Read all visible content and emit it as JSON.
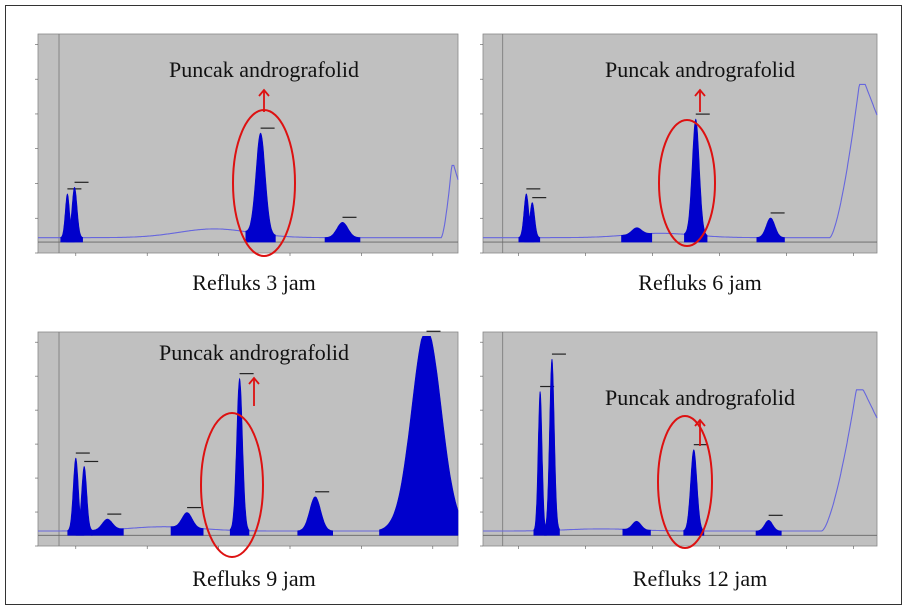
{
  "figure": {
    "peak_label": "Puncak andrografolid",
    "colors": {
      "fill": "#0000cc",
      "line": "#6666dd",
      "bg": "#c0c0c0",
      "baseline": "#666666",
      "marker": "#dd1111"
    }
  },
  "chart_data": [
    {
      "type": "area",
      "caption": "Refluks 3 jam",
      "annotation": "Puncak andrografolid",
      "peaks": [
        {
          "center": 0.07,
          "height": 0.2,
          "width": 0.005
        },
        {
          "center": 0.087,
          "height": 0.23,
          "width": 0.006
        },
        {
          "center": 0.53,
          "height": 0.46,
          "width": 0.011
        },
        {
          "center": 0.725,
          "height": 0.07,
          "width": 0.013
        }
      ],
      "end_rise": {
        "start": 0.96,
        "height": 0.33
      },
      "hump": {
        "center": 0.42,
        "height": 0.04
      }
    },
    {
      "type": "area",
      "caption": "Refluks 6 jam",
      "annotation": "Puncak andrografolid",
      "peaks": [
        {
          "center": 0.11,
          "height": 0.2,
          "width": 0.006
        },
        {
          "center": 0.125,
          "height": 0.16,
          "width": 0.006
        },
        {
          "center": 0.39,
          "height": 0.03,
          "width": 0.012
        },
        {
          "center": 0.54,
          "height": 0.53,
          "width": 0.009
        },
        {
          "center": 0.73,
          "height": 0.09,
          "width": 0.011
        }
      ],
      "end_rise": {
        "start": 0.88,
        "height": 0.7
      },
      "hump": {
        "center": 0.45,
        "height": 0.02
      }
    },
    {
      "type": "area",
      "caption": "Refluks 9 jam",
      "annotation": "Puncak andrografolid",
      "peaks": [
        {
          "center": 0.09,
          "height": 0.34,
          "width": 0.006
        },
        {
          "center": 0.11,
          "height": 0.3,
          "width": 0.006
        },
        {
          "center": 0.165,
          "height": 0.05,
          "width": 0.012
        },
        {
          "center": 0.355,
          "height": 0.07,
          "width": 0.012
        },
        {
          "center": 0.48,
          "height": 0.71,
          "width": 0.007
        },
        {
          "center": 0.66,
          "height": 0.16,
          "width": 0.013
        },
        {
          "center": 0.925,
          "height": 0.95,
          "width": 0.035
        }
      ],
      "end_rise": null,
      "hump": {
        "center": 0.3,
        "height": 0.02
      }
    },
    {
      "type": "area",
      "caption": "Refluks 12 jam",
      "annotation": "Puncak andrografolid",
      "peaks": [
        {
          "center": 0.145,
          "height": 0.65,
          "width": 0.005
        },
        {
          "center": 0.175,
          "height": 0.8,
          "width": 0.006
        },
        {
          "center": 0.39,
          "height": 0.04,
          "width": 0.011
        },
        {
          "center": 0.535,
          "height": 0.38,
          "width": 0.008
        },
        {
          "center": 0.725,
          "height": 0.05,
          "width": 0.01
        }
      ],
      "end_rise": {
        "start": 0.86,
        "height": 0.66
      },
      "hump": {
        "center": 0.3,
        "height": 0.01
      }
    }
  ]
}
